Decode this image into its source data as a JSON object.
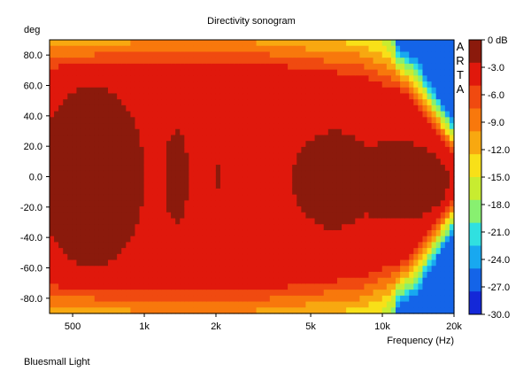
{
  "chart_data": {
    "type": "heatmap",
    "title": "Directivity sonogram",
    "ylabel": "deg",
    "xlabel": "Frequency (Hz)",
    "x_scale": "log",
    "xlim": [
      400,
      20000
    ],
    "ylim": [
      90,
      -90
    ],
    "x_ticks": [
      {
        "value": 500,
        "label": "500"
      },
      {
        "value": 1000,
        "label": "1k"
      },
      {
        "value": 2000,
        "label": "2k"
      },
      {
        "value": 5000,
        "label": "5k"
      },
      {
        "value": 10000,
        "label": "10k"
      },
      {
        "value": 20000,
        "label": "20k"
      }
    ],
    "y_ticks": [
      {
        "value": -80,
        "label": "-80.0"
      },
      {
        "value": -60,
        "label": "-60.0"
      },
      {
        "value": -40,
        "label": "-40.0"
      },
      {
        "value": -20,
        "label": "-20.0"
      },
      {
        "value": 0,
        "label": "0.0"
      },
      {
        "value": 20,
        "label": "20.0"
      },
      {
        "value": 40,
        "label": "40.0"
      },
      {
        "value": 60,
        "label": "60.0"
      },
      {
        "value": 80,
        "label": "80.0"
      }
    ],
    "watermark": [
      "A",
      "R",
      "T",
      "A"
    ],
    "footer": "Bluesmall Light",
    "colorbar": {
      "unit": "dB",
      "labels": [
        "0 dB",
        "-3.0",
        "-6.0",
        "-9.0",
        "-12.0",
        "-15.0",
        "-18.0",
        "-21.0",
        "-24.0",
        "-27.0",
        "-30.0"
      ],
      "colors": [
        "#8b1a0c",
        "#e0180c",
        "#f04a10",
        "#f8780c",
        "#f8a810",
        "#f8e018",
        "#c8ec30",
        "#88f070",
        "#30e0e0",
        "#18a8f0",
        "#1464e8",
        "#1428d8"
      ]
    },
    "z_levels": [
      {
        "level_db": -3,
        "region": "main lobe 400-1200 Hz, -60 to +60 deg"
      },
      {
        "level_db": -3,
        "region": "island 1.2-1.5 kHz, -30 to +30 deg"
      },
      {
        "level_db": -3,
        "region": "island near 2 kHz, -8 to +8 deg"
      },
      {
        "level_db": -3,
        "region": "lobe 3.5-18 kHz, -35 to +30 deg"
      },
      {
        "level_db": -6,
        "region": "1-3 kHz at +/-80 deg"
      },
      {
        "level_db": -9,
        "region": "400-1000 Hz at +/-85 deg"
      },
      {
        "level_db": -30,
        "region": "15-20 kHz beyond +/-70 deg"
      }
    ]
  }
}
